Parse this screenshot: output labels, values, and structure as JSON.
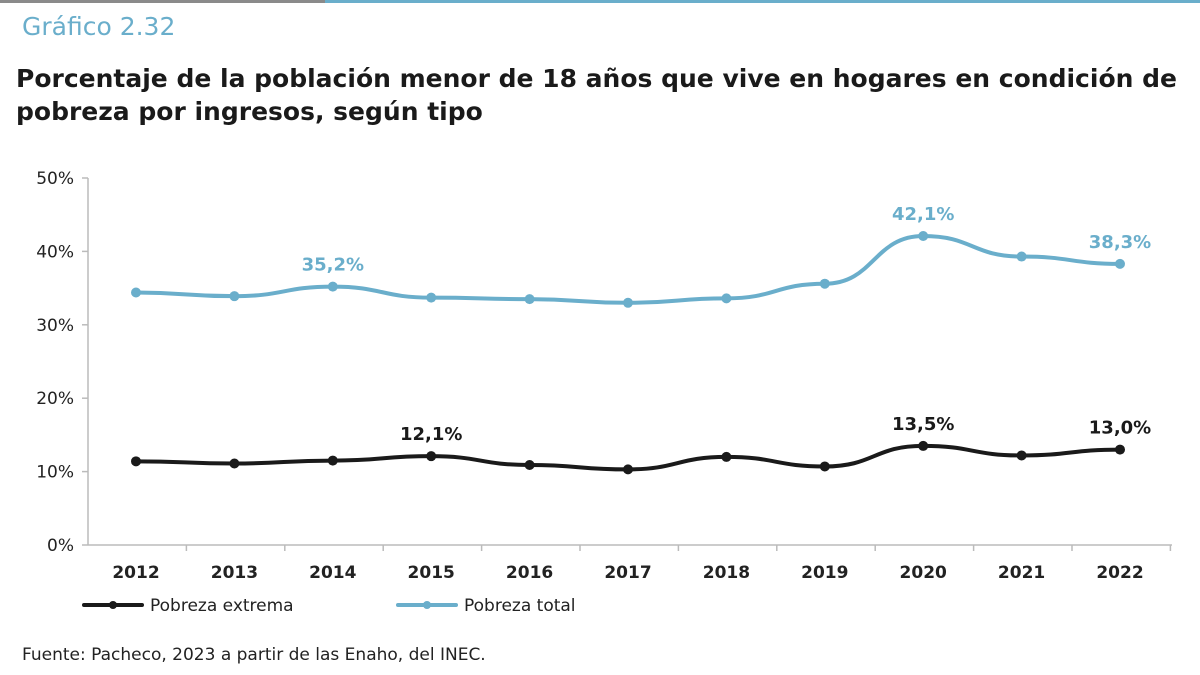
{
  "figure_label": "Gráfico 2.32",
  "source_note": "Fuente: Pacheco, 2023 a partir de las Enaho, del INEC.",
  "colors": {
    "extrema": "#1a1a1a",
    "total": "#6aaecb",
    "axis": "#bbbbbb"
  },
  "chart_data": {
    "type": "line",
    "title": "Porcentaje de la población menor de 18 años que vive en hogares en condición de pobreza por ingresos, según tipo",
    "xlabel": "",
    "ylabel": "",
    "categories": [
      "2012",
      "2013",
      "2014",
      "2015",
      "2016",
      "2017",
      "2018",
      "2019",
      "2020",
      "2021",
      "2022"
    ],
    "ylim": [
      0,
      50
    ],
    "yticks": [
      "0%",
      "10%",
      "20%",
      "30%",
      "40%",
      "50%"
    ],
    "grid": false,
    "legend_position": "bottom-left",
    "series": [
      {
        "name": "Pobreza extrema",
        "color": "#1a1a1a",
        "values": [
          11.4,
          11.1,
          11.5,
          12.1,
          10.9,
          10.3,
          12.0,
          10.7,
          13.5,
          12.2,
          13.0
        ],
        "labels": [
          {
            "index": 3,
            "text": "12,1%"
          },
          {
            "index": 8,
            "text": "13,5%"
          },
          {
            "index": 10,
            "text": "13,0%"
          }
        ]
      },
      {
        "name": "Pobreza total",
        "color": "#6aaecb",
        "values": [
          34.4,
          33.9,
          35.2,
          33.7,
          33.5,
          33.0,
          33.6,
          35.6,
          42.1,
          39.3,
          38.3
        ],
        "labels": [
          {
            "index": 2,
            "text": "35,2%"
          },
          {
            "index": 8,
            "text": "42,1%"
          },
          {
            "index": 10,
            "text": "38,3%"
          }
        ]
      }
    ]
  }
}
